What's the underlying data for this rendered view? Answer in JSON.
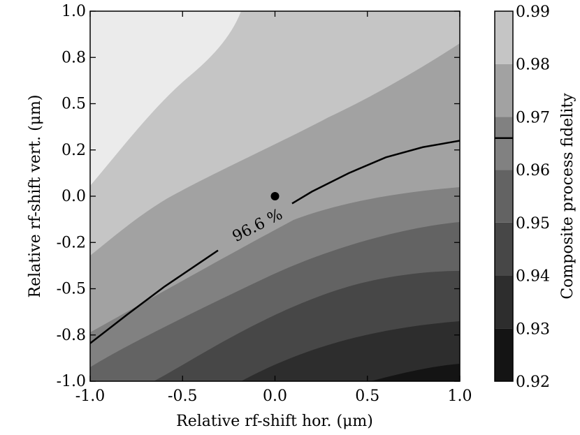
{
  "chart_data": {
    "type": "heatmap",
    "subtype": "filled-contour",
    "x_range": [
      -1.0,
      1.0
    ],
    "y_range": [
      -1.0,
      1.0
    ],
    "xlabel": "Relative rf-shift hor. (μm)",
    "ylabel": "Relative rf-shift vert. (μm)",
    "x_ticks": [
      -1.0,
      -0.5,
      0.0,
      0.5,
      1.0
    ],
    "x_tick_labels": [
      "-1.0",
      "-0.5",
      "0.0",
      "0.5",
      "1.0"
    ],
    "y_ticks": [
      -1.0,
      -0.75,
      -0.5,
      -0.25,
      0.0,
      0.25,
      0.5,
      0.75,
      1.0
    ],
    "y_tick_labels": [
      "-1.0",
      "-0.8",
      "-0.5",
      "-0.2",
      "0.0",
      "0.2",
      "0.5",
      "0.8",
      "1.0"
    ],
    "colorbar": {
      "label": "Composite process fidelity",
      "min": 0.92,
      "max": 0.99,
      "ticks": [
        0.92,
        0.93,
        0.94,
        0.95,
        0.96,
        0.97,
        0.98,
        0.99
      ],
      "tick_labels": [
        "0.92",
        "0.93",
        "0.94",
        "0.95",
        "0.96",
        "0.97",
        "0.98",
        "0.99"
      ],
      "marker_value": 0.966
    },
    "levels": [
      0.92,
      0.93,
      0.94,
      0.95,
      0.96,
      0.97,
      0.98,
      0.99
    ],
    "level_colors": [
      "#141414",
      "#2d2d2d",
      "#474747",
      "#636363",
      "#818181",
      "#a2a2a2",
      "#c5c5c5",
      "#ebebeb"
    ],
    "contour_line": {
      "value": 0.966,
      "label": "96.6 %",
      "points": [
        [
          -1.0,
          -0.795
        ],
        [
          -0.8,
          -0.64
        ],
        [
          -0.6,
          -0.49
        ],
        [
          -0.4,
          -0.355
        ],
        [
          -0.2,
          -0.22
        ],
        [
          0.0,
          -0.095
        ],
        [
          0.2,
          0.025
        ],
        [
          0.4,
          0.125
        ],
        [
          0.6,
          0.21
        ],
        [
          0.8,
          0.265
        ],
        [
          1.0,
          0.3
        ]
      ]
    },
    "marker": {
      "x": 0.0,
      "y": 0.0
    }
  }
}
